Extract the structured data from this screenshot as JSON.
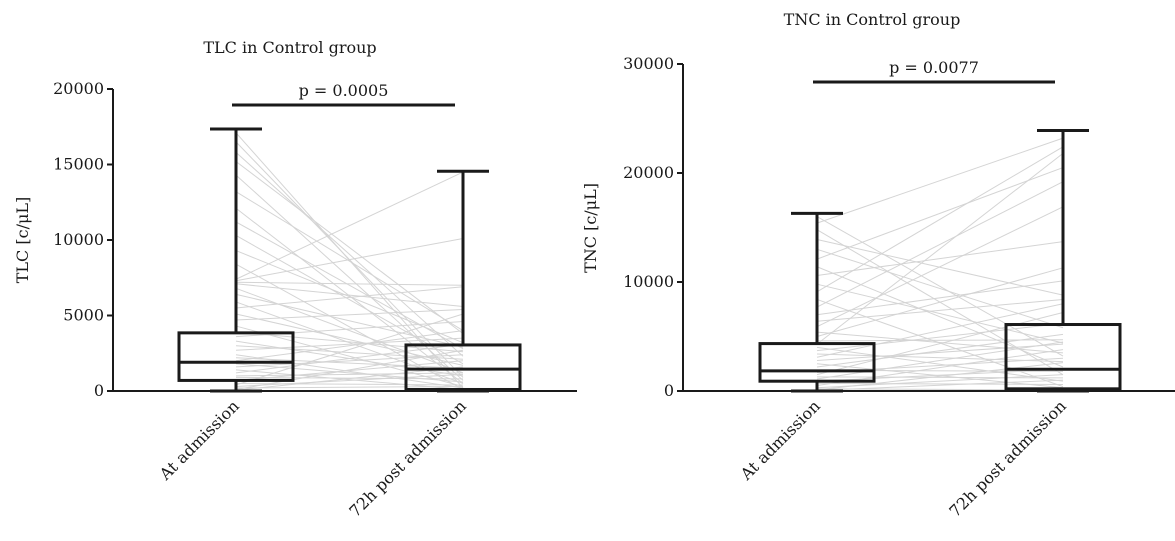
{
  "chart_data": [
    {
      "type": "box",
      "title": "TLC in Control group",
      "ylabel": "TLC [c/μL]",
      "xlabel": "",
      "ylim": [
        0,
        20000
      ],
      "yticks": [
        0,
        5000,
        10000,
        15000,
        20000
      ],
      "tick_labels": [
        "0",
        "5000",
        "10000",
        "15000",
        "20000"
      ],
      "categories": [
        "At admission",
        "72h post admission"
      ],
      "boxes": [
        {
          "name": "At admission",
          "min": 0,
          "q1": 700,
          "median": 1900,
          "q3": 3850,
          "max": 17350
        },
        {
          "name": "72h post admission",
          "min": 0,
          "q1": 100,
          "median": 1450,
          "q3": 3050,
          "max": 14550
        }
      ],
      "paired_lines": [
        [
          17100,
          200
        ],
        [
          16500,
          900
        ],
        [
          15800,
          2300
        ],
        [
          15200,
          3800
        ],
        [
          14300,
          700
        ],
        [
          13200,
          4000
        ],
        [
          12100,
          500
        ],
        [
          11200,
          2800
        ],
        [
          10300,
          1800
        ],
        [
          9300,
          3200
        ],
        [
          8400,
          100
        ],
        [
          7400,
          14500
        ],
        [
          7300,
          10100
        ],
        [
          7200,
          7000
        ],
        [
          7100,
          5600
        ],
        [
          6800,
          1200
        ],
        [
          6400,
          2900
        ],
        [
          5900,
          500
        ],
        [
          5500,
          6900
        ],
        [
          5100,
          1700
        ],
        [
          4700,
          5400
        ],
        [
          4300,
          300
        ],
        [
          3900,
          2600
        ],
        [
          3600,
          4600
        ],
        [
          3300,
          1000
        ],
        [
          3000,
          2100
        ],
        [
          2700,
          3500
        ],
        [
          2400,
          200
        ],
        [
          2200,
          1500
        ],
        [
          2000,
          4000
        ],
        [
          1800,
          600
        ],
        [
          1600,
          2400
        ],
        [
          1400,
          100
        ],
        [
          1200,
          3100
        ],
        [
          1000,
          1200
        ],
        [
          900,
          800
        ],
        [
          700,
          2000
        ],
        [
          500,
          400
        ],
        [
          400,
          5100
        ],
        [
          300,
          1100
        ],
        [
          200,
          300
        ],
        [
          100,
          2700
        ],
        [
          50,
          1600
        ]
      ],
      "significance": {
        "label": "p = 0.0005"
      },
      "grid": false
    },
    {
      "type": "box",
      "title": "TNC in Control group",
      "ylabel": "TNC [c/μL]",
      "xlabel": "",
      "ylim": [
        0,
        30000
      ],
      "yticks": [
        0,
        10000,
        20000,
        30000
      ],
      "tick_labels": [
        "0",
        "10000",
        "20000",
        "30000"
      ],
      "categories": [
        "At admission",
        "72h post admission"
      ],
      "boxes": [
        {
          "name": "At admission",
          "min": 0,
          "q1": 900,
          "median": 1850,
          "q3": 4350,
          "max": 16300
        },
        {
          "name": "72h post admission",
          "min": 0,
          "q1": 200,
          "median": 2000,
          "q3": 6100,
          "max": 23900
        }
      ],
      "paired_lines": [
        [
          16000,
          3200
        ],
        [
          15400,
          23200
        ],
        [
          14800,
          1500
        ],
        [
          13900,
          8800
        ],
        [
          13000,
          5800
        ],
        [
          12100,
          20500
        ],
        [
          11400,
          2200
        ],
        [
          10600,
          13700
        ],
        [
          9800,
          4400
        ],
        [
          9100,
          22400
        ],
        [
          8400,
          400
        ],
        [
          7700,
          19200
        ],
        [
          7000,
          10100
        ],
        [
          6400,
          8400
        ],
        [
          5900,
          16900
        ],
        [
          5400,
          3500
        ],
        [
          5000,
          11300
        ],
        [
          4600,
          4700
        ],
        [
          4300,
          21800
        ],
        [
          4000,
          900
        ],
        [
          3700,
          6200
        ],
        [
          3400,
          2700
        ],
        [
          3100,
          8000
        ],
        [
          2800,
          4300
        ],
        [
          2500,
          300
        ],
        [
          2200,
          5200
        ],
        [
          1900,
          1800
        ],
        [
          1700,
          3000
        ],
        [
          1500,
          7200
        ],
        [
          1300,
          1200
        ],
        [
          1100,
          4500
        ],
        [
          900,
          2000
        ],
        [
          700,
          600
        ],
        [
          500,
          3800
        ],
        [
          300,
          1500
        ],
        [
          200,
          100
        ],
        [
          100,
          2600
        ],
        [
          50,
          1000
        ]
      ],
      "significance": {
        "label": "p = 0.0077"
      },
      "grid": false
    }
  ]
}
